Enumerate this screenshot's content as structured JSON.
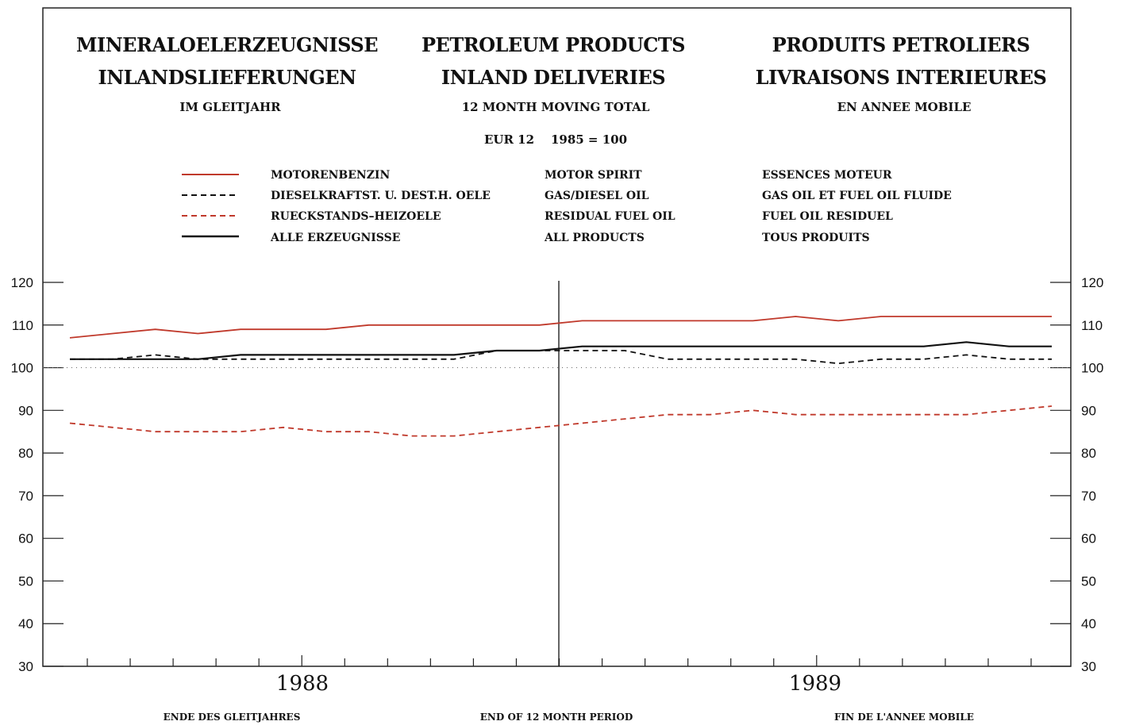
{
  "headers": {
    "de": {
      "line1": "MINERALOELERZEUGNISSE",
      "line2": "INLANDSLIEFERUNGEN",
      "sub": "IM GLEITJAHR"
    },
    "en": {
      "line1": "PETROLEUM PRODUCTS",
      "line2": "INLAND DELIVERIES",
      "sub": "12 MONTH MOVING TOTAL",
      "base": "EUR 12    1985 = 100"
    },
    "fr": {
      "line1": "PRODUITS PETROLIERS",
      "line2": "LIVRAISONS INTERIEURES",
      "sub": "EN ANNEE MOBILE"
    }
  },
  "legend": [
    {
      "de": "MOTORENBENZIN",
      "en": "MOTOR SPIRIT",
      "fr": "ESSENCES MOTEUR",
      "color": "#c0392b",
      "dash": "solid"
    },
    {
      "de": "DIESELKRAFTST. U. DEST.H. OELE",
      "en": "GAS/DIESEL OIL",
      "fr": "GAS OIL ET FUEL OIL FLUIDE",
      "color": "#111111",
      "dash": "dashed"
    },
    {
      "de": "RUECKSTANDS–HEIZOELE",
      "en": "RESIDUAL FUEL OIL",
      "fr": "FUEL OIL RESIDUEL",
      "color": "#c0392b",
      "dash": "dashed"
    },
    {
      "de": "ALLE ERZEUGNISSE",
      "en": "ALL PRODUCTS",
      "fr": "TOUS PRODUITS",
      "color": "#111111",
      "dash": "solid"
    }
  ],
  "footer": {
    "de": "ENDE DES GLEITJAHRES",
    "en": "END OF 12 MONTH PERIOD",
    "fr": "FIN DE L'ANNEE MOBILE"
  },
  "chart_data": {
    "type": "line",
    "ylim": [
      30,
      120
    ],
    "yticks": [
      30,
      40,
      50,
      60,
      70,
      80,
      90,
      100,
      110,
      120
    ],
    "x": [
      "1987-07",
      "1987-08",
      "1987-09",
      "1987-10",
      "1987-11",
      "1987-12",
      "1988-01",
      "1988-02",
      "1988-03",
      "1988-04",
      "1988-05",
      "1988-06",
      "1988-07",
      "1988-08",
      "1988-09",
      "1988-10",
      "1988-11",
      "1988-12",
      "1989-01",
      "1989-02",
      "1989-03",
      "1989-04",
      "1989-05",
      "1989-06"
    ],
    "year_labels": [
      "1988",
      "1989"
    ],
    "reference_line": 100,
    "divider_at": "1988-06",
    "series": [
      {
        "name": "MOTORENBENZIN",
        "values": [
          107,
          108,
          109,
          108,
          109,
          109,
          109,
          110,
          110,
          110,
          110,
          110,
          111,
          111,
          111,
          111,
          111,
          112,
          111,
          112,
          112,
          112,
          112,
          112
        ]
      },
      {
        "name": "DIESELKRAFTST. U. DEST.H. OELE",
        "values": [
          102,
          102,
          103,
          102,
          102,
          102,
          102,
          102,
          102,
          102,
          104,
          104,
          104,
          104,
          102,
          102,
          102,
          102,
          101,
          102,
          102,
          103,
          102,
          102
        ]
      },
      {
        "name": "RUECKSTANDS–HEIZOELE",
        "values": [
          87,
          86,
          85,
          85,
          85,
          86,
          85,
          85,
          84,
          84,
          85,
          86,
          87,
          88,
          89,
          89,
          90,
          89,
          89,
          89,
          89,
          89,
          90,
          91
        ]
      },
      {
        "name": "ALLE ERZEUGNISSE",
        "values": [
          102,
          102,
          102,
          102,
          103,
          103,
          103,
          103,
          103,
          103,
          104,
          104,
          105,
          105,
          105,
          105,
          105,
          105,
          105,
          105,
          105,
          106,
          105,
          105
        ]
      }
    ]
  }
}
